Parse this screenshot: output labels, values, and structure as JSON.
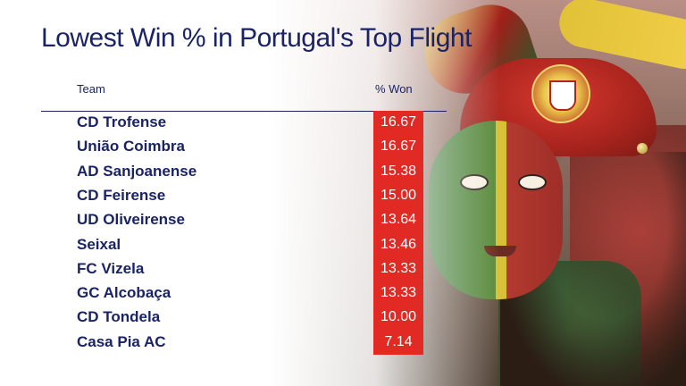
{
  "title": "Lowest Win % in Portugal's Top Flight",
  "columns": {
    "team": "Team",
    "won": "% Won"
  },
  "colors": {
    "title": "#1a2366",
    "highlight": "#e12a23",
    "value_text": "#ffffff"
  },
  "chart_data": {
    "type": "table",
    "title": "Lowest Win % in Portugal's Top Flight",
    "columns": [
      "Team",
      "% Won"
    ],
    "rows": [
      {
        "team": "CD Trofense",
        "won": "16.67"
      },
      {
        "team": "União Coimbra",
        "won": "16.67"
      },
      {
        "team": "AD Sanjoanense",
        "won": "15.38"
      },
      {
        "team": "CD Feirense",
        "won": "15.00"
      },
      {
        "team": "UD Oliveirense",
        "won": "13.64"
      },
      {
        "team": "Seixal",
        "won": "13.46"
      },
      {
        "team": "FC Vizela",
        "won": "13.33"
      },
      {
        "team": "GC Alcobaça",
        "won": "13.33"
      },
      {
        "team": "CD Tondela",
        "won": "10.00"
      },
      {
        "team": "Casa Pia AC",
        "won": "7.14"
      }
    ]
  }
}
